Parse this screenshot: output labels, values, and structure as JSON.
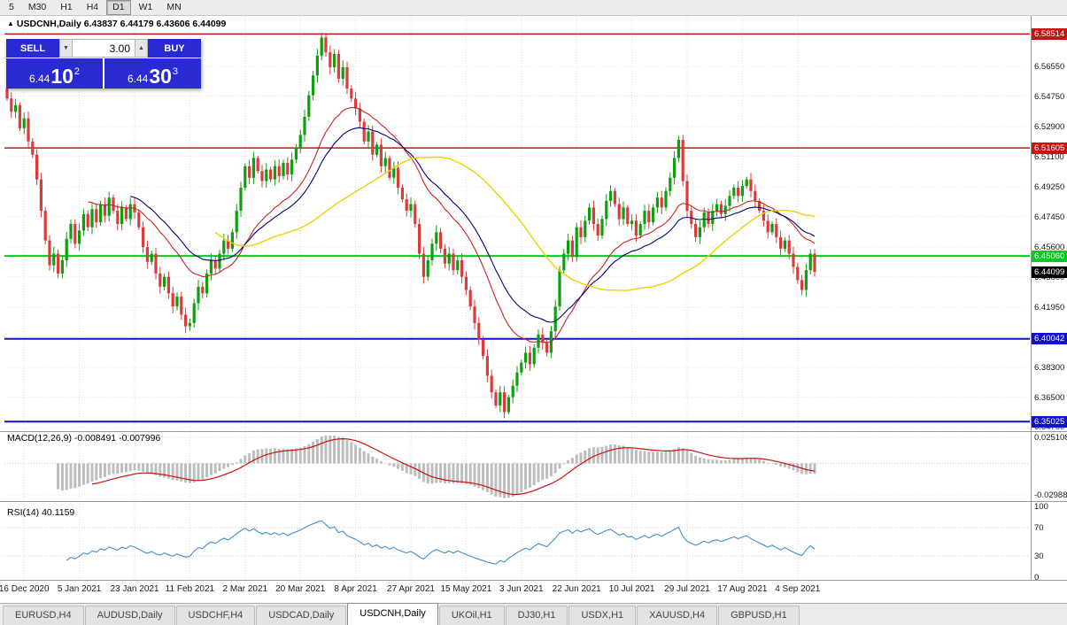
{
  "toolbar": {
    "timeframes": [
      "5",
      "M30",
      "H1",
      "H4",
      "D1",
      "W1",
      "MN"
    ],
    "active": "D1"
  },
  "header": {
    "symbol_line": "USDCNH,Daily 6.43837 6.44179 6.43606 6.44099"
  },
  "icons": {
    "symbol_marker": "▲",
    "spinner_down": "▼",
    "spinner_up": "▲"
  },
  "trade_panel": {
    "sell_label": "SELL",
    "buy_label": "BUY",
    "volume": "3.00",
    "accent": "#2a2ad2",
    "sell_price": {
      "small": "6.44",
      "big": "10",
      "sup": "2"
    },
    "buy_price": {
      "small": "6.44",
      "big": "30",
      "sup": "3"
    }
  },
  "panes": {
    "macd_header": "MACD(12,26,9) -0.008491 -0.007996",
    "rsi_header": "RSI(14) 40.1159"
  },
  "chart_data": {
    "type": "candlestick",
    "symbol": "USDCNH",
    "timeframe": "Daily",
    "current_bar": {
      "open": 6.43837,
      "high": 6.44179,
      "low": 6.43606,
      "close": 6.44099
    },
    "ylim": [
      6.345,
      6.595
    ],
    "up_color": "#0da00d",
    "down_color": "#dc3b3b",
    "closes": [
      6.546,
      6.538,
      6.542,
      6.528,
      6.534,
      6.52,
      6.512,
      6.497,
      6.478,
      6.46,
      6.445,
      6.452,
      6.44,
      6.448,
      6.461,
      6.47,
      6.458,
      6.466,
      6.476,
      6.468,
      6.479,
      6.471,
      6.482,
      6.475,
      6.486,
      6.478,
      6.47,
      6.48,
      6.473,
      6.482,
      6.477,
      6.468,
      6.456,
      6.447,
      6.452,
      6.44,
      6.432,
      6.438,
      6.428,
      6.42,
      6.426,
      6.415,
      6.408,
      6.41,
      6.422,
      6.432,
      6.428,
      6.44,
      6.448,
      6.443,
      6.452,
      6.46,
      6.455,
      6.465,
      6.478,
      6.492,
      6.505,
      6.498,
      6.51,
      6.502,
      6.496,
      6.503,
      6.497,
      6.505,
      6.499,
      6.507,
      6.5,
      6.509,
      6.516,
      6.524,
      6.535,
      6.548,
      6.56,
      6.572,
      6.583,
      6.574,
      6.565,
      6.573,
      6.558,
      6.565,
      6.552,
      6.546,
      6.54,
      6.532,
      6.52,
      6.526,
      6.512,
      6.518,
      6.505,
      6.51,
      6.498,
      6.504,
      6.492,
      6.485,
      6.478,
      6.482,
      6.47,
      6.452,
      6.438,
      6.448,
      6.458,
      6.465,
      6.455,
      6.446,
      6.452,
      6.442,
      6.448,
      6.438,
      6.43,
      6.42,
      6.41,
      6.4,
      6.39,
      6.378,
      6.368,
      6.36,
      6.368,
      6.356,
      6.365,
      6.372,
      6.38,
      6.386,
      6.392,
      6.385,
      6.395,
      6.403,
      6.398,
      6.392,
      6.405,
      6.42,
      6.442,
      6.452,
      6.46,
      6.45,
      6.468,
      6.462,
      6.472,
      6.48,
      6.47,
      6.463,
      6.473,
      6.484,
      6.49,
      6.482,
      6.473,
      6.48,
      6.47,
      6.472,
      6.463,
      6.47,
      6.478,
      6.471,
      6.48,
      6.486,
      6.48,
      6.49,
      6.498,
      6.51,
      6.521,
      6.496,
      6.478,
      6.47,
      6.462,
      6.468,
      6.477,
      6.47,
      6.478,
      6.482,
      6.476,
      6.481,
      6.487,
      6.492,
      6.487,
      6.493,
      6.497,
      6.49,
      6.484,
      6.478,
      6.472,
      6.465,
      6.47,
      6.462,
      6.455,
      6.46,
      6.452,
      6.444,
      6.436,
      6.43,
      6.442,
      6.452,
      6.441
    ],
    "moving_averages": [
      {
        "period": 20,
        "method": "ema",
        "color": "#cc2222",
        "width": 1.1
      },
      {
        "period": 30,
        "method": "ema",
        "color": "#000080",
        "width": 1.1
      },
      {
        "period": 50,
        "method": "sma",
        "color": "#ecd200",
        "width": 1.4
      }
    ],
    "price_ticks": [
      "6.56550",
      "6.54750",
      "6.52900",
      "6.51100",
      "6.49250",
      "6.47450",
      "6.45600",
      "6.43800",
      "6.41950",
      "6.40150",
      "6.38300",
      "6.36500",
      "6.34700"
    ],
    "levels": [
      {
        "price": 6.58514,
        "label": "6.58514",
        "color": "#cc1111",
        "width": 1.5
      },
      {
        "price": 6.51605,
        "label": "6.51605",
        "color": "#cc1111",
        "width": 1.5
      },
      {
        "price": 6.4506,
        "label": "6.45060",
        "color": "#00cc22",
        "width": 2
      },
      {
        "price": 6.40042,
        "label": "6.40042",
        "color": "#1111cc",
        "width": 2
      },
      {
        "price": 6.35025,
        "label": "6.35025",
        "color": "#1111cc",
        "width": 2
      }
    ],
    "current_price_tag": {
      "label": "6.44099",
      "price": 6.44099,
      "bg": "#000000"
    },
    "x_labels": [
      {
        "label": "16 Dec 2020",
        "index": 4
      },
      {
        "label": "5 Jan 2021",
        "index": 17
      },
      {
        "label": "23 Jan 2021",
        "index": 30
      },
      {
        "label": "11 Feb 2021",
        "index": 43
      },
      {
        "label": "2 Mar 2021",
        "index": 56
      },
      {
        "label": "20 Mar 2021",
        "index": 69
      },
      {
        "label": "8 Apr 2021",
        "index": 82
      },
      {
        "label": "27 Apr 2021",
        "index": 95
      },
      {
        "label": "15 May 2021",
        "index": 108
      },
      {
        "label": "3 Jun 2021",
        "index": 121
      },
      {
        "label": "22 Jun 2021",
        "index": 134
      },
      {
        "label": "10 Jul 2021",
        "index": 147
      },
      {
        "label": "29 Jul 2021",
        "index": 160
      },
      {
        "label": "17 Aug 2021",
        "index": 173
      },
      {
        "label": "4 Sep 2021",
        "index": 186
      }
    ],
    "macd": {
      "params": [
        12,
        26,
        9
      ],
      "values_text": [
        "-0.008491",
        "-0.007996"
      ],
      "range": [
        -0.0335,
        0.0283
      ],
      "axis_labels": [
        {
          "value": 0.025108,
          "label": "0.025108"
        },
        {
          "value": -0.02988,
          "label": "-0.029880"
        }
      ],
      "bar_color": "#bdbdbd",
      "signal_color": "#cc1111"
    },
    "rsi": {
      "period": 14,
      "value_text": "40.1159",
      "color": "#3d8fd3",
      "axis_labels": [
        {
          "value": 100,
          "label": "100"
        },
        {
          "value": 70,
          "label": "70"
        },
        {
          "value": 30,
          "label": "30"
        },
        {
          "value": 0,
          "label": "0"
        }
      ],
      "guides": [
        70,
        30
      ]
    }
  },
  "tabs": {
    "items": [
      {
        "label": "EURUSD,H4",
        "active": false
      },
      {
        "label": "AUDUSD,Daily",
        "active": false
      },
      {
        "label": "USDCHF,H4",
        "active": false
      },
      {
        "label": "USDCAD,Daily",
        "active": false
      },
      {
        "label": "USDCNH,Daily",
        "active": true
      },
      {
        "label": "UKOil,H1",
        "active": false
      },
      {
        "label": "DJ30,H1",
        "active": false
      },
      {
        "label": "USDX,H1",
        "active": false
      },
      {
        "label": "XAUUSD,H4",
        "active": false
      },
      {
        "label": "GBPUSD,H1",
        "active": false
      }
    ]
  }
}
